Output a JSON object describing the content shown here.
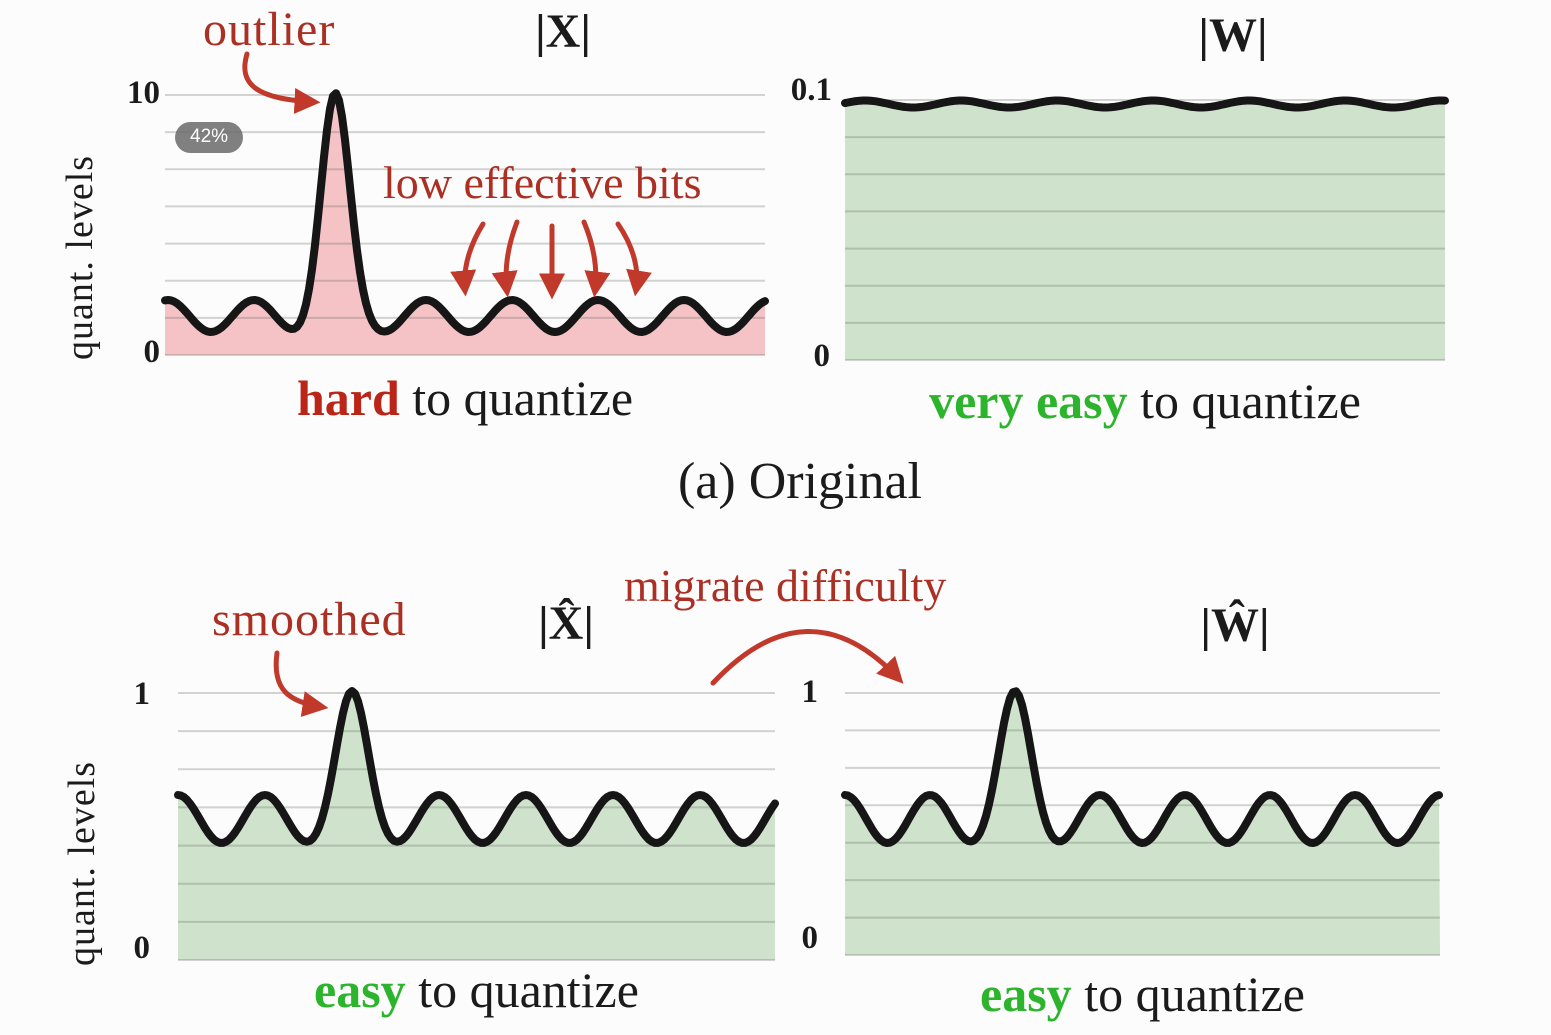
{
  "badge": {
    "value": "42%"
  },
  "palette": {
    "red_text": "#ab2f23",
    "red_arrow": "#c0392b",
    "dark_red_em": "#bb2518",
    "green_text": "#2cb42c",
    "pink_fill": "#f5c2c5",
    "green_fill": "#cfe2cb",
    "curve": "#161616",
    "text": "#1b1b1b"
  },
  "figure": {
    "subcaption": "(a) Original",
    "y_axis_label": "quant. levels",
    "annotations": {
      "outlier": "outlier",
      "low_effective_bits": "low effective bits",
      "smoothed": "smoothed",
      "migrate_difficulty": "migrate difficulty"
    },
    "plots": [
      {
        "key": "activation-original",
        "title": "|X|",
        "top_tick": "10",
        "bottom_tick": "0",
        "fill": "#f5c2c5",
        "caption_emphasis": "hard",
        "caption_rest": " to quantize",
        "emphasis_color": "#bb2518"
      },
      {
        "key": "weight-original",
        "title": "|W|",
        "top_tick": "0.1",
        "bottom_tick": "0",
        "fill": "#cfe2cb",
        "caption_emphasis": "very easy",
        "caption_rest": " to quantize",
        "emphasis_color": "#2cb42c"
      },
      {
        "key": "activation-smoothed",
        "title": "|X̂|",
        "top_tick": "1",
        "bottom_tick": "0",
        "fill": "#cfe2cb",
        "caption_emphasis": "easy",
        "caption_rest": " to quantize",
        "emphasis_color": "#2cb42c"
      },
      {
        "key": "weight-migrated",
        "title": "|Ŵ|",
        "top_tick": "1",
        "bottom_tick": "0",
        "fill": "#cfe2cb",
        "caption_emphasis": "easy",
        "caption_rest": " to quantize",
        "emphasis_color": "#2cb42c"
      }
    ]
  }
}
